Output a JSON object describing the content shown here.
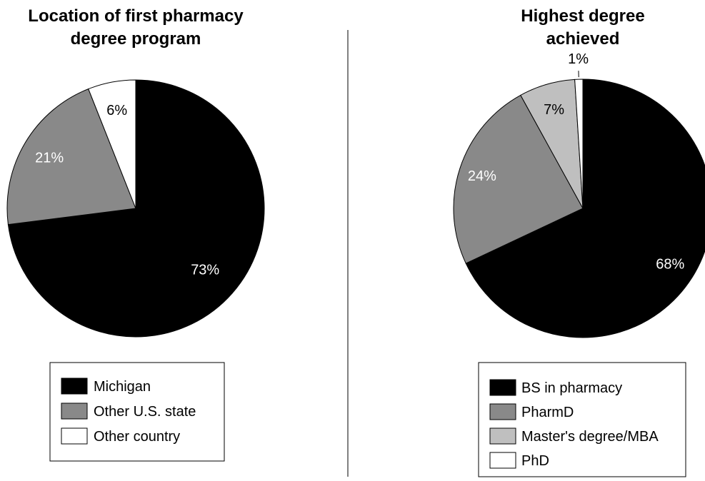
{
  "chart_data": [
    {
      "type": "pie",
      "title": "Location of first pharmacy degree program",
      "title_lines": [
        "Location of first pharmacy",
        "degree program"
      ],
      "start": "top, clockwise",
      "slices": [
        {
          "label": "Michigan",
          "value": 73,
          "value_label": "73%",
          "color": "#000000",
          "text_color": "#ffffff"
        },
        {
          "label": "Other U.S. state",
          "value": 21,
          "value_label": "21%",
          "color": "#898989",
          "text_color": "#ffffff"
        },
        {
          "label": "Other country",
          "value": 6,
          "value_label": "6%",
          "color": "#ffffff",
          "text_color": "#000000"
        }
      ],
      "legend_placement": "bottom"
    },
    {
      "type": "pie",
      "title": "Highest degree achieved",
      "title_lines": [
        "Highest degree",
        "achieved"
      ],
      "start": "top, clockwise",
      "slices": [
        {
          "label": "BS in pharmacy",
          "value": 68,
          "value_label": "68%",
          "color": "#000000",
          "text_color": "#ffffff"
        },
        {
          "label": "PharmD",
          "value": 24,
          "value_label": "24%",
          "color": "#898989",
          "text_color": "#ffffff"
        },
        {
          "label": "Master's degree/MBA",
          "value": 7,
          "value_label": "7%",
          "color": "#bfbfbf",
          "text_color": "#000000"
        },
        {
          "label": "PhD",
          "value": 1,
          "value_label": "1%",
          "color": "#ffffff",
          "text_color": "#000000"
        }
      ],
      "legend_placement": "bottom"
    }
  ]
}
